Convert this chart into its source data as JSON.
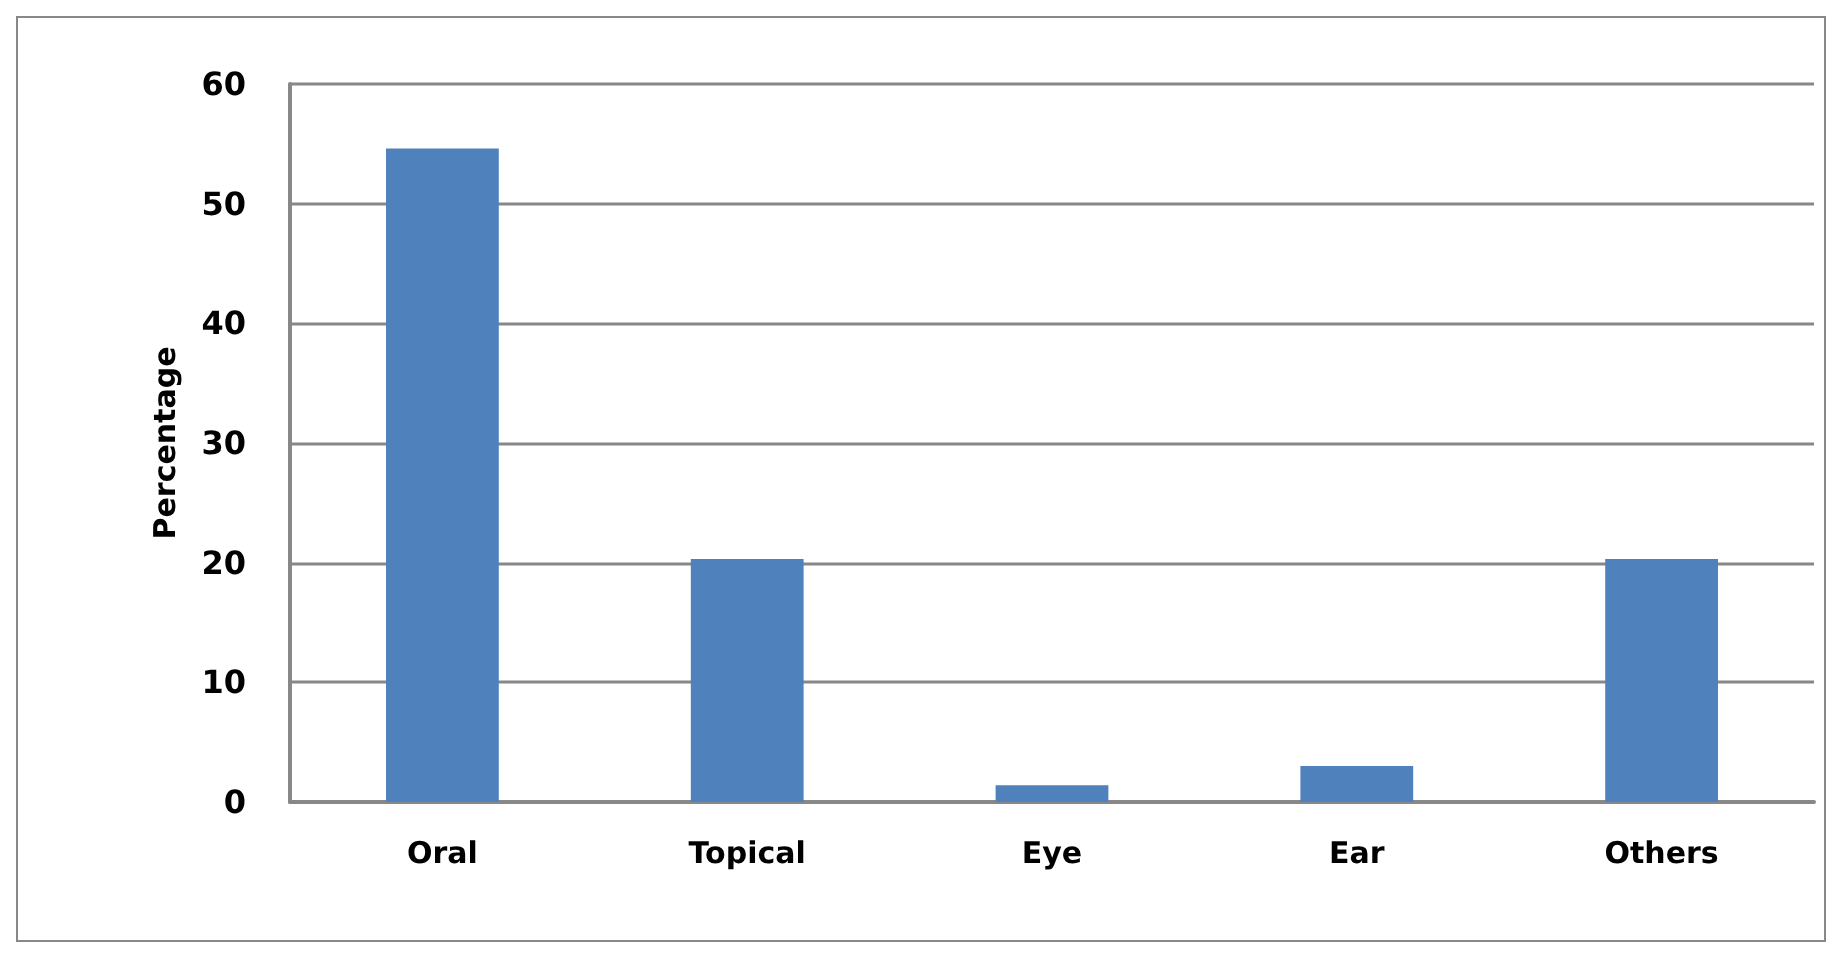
{
  "chart_data": {
    "type": "bar",
    "ylabel": "Percentage",
    "categories": [
      "Oral",
      "Topical",
      "Eye",
      "Ear",
      "Others"
    ],
    "values": [
      54.6,
      20.3,
      1.4,
      3.0,
      20.3
    ],
    "color": "#4f81bd",
    "ylim": [
      0,
      60
    ],
    "yticks": [
      0,
      10,
      20,
      30,
      40,
      50,
      60
    ],
    "grid": "y"
  }
}
